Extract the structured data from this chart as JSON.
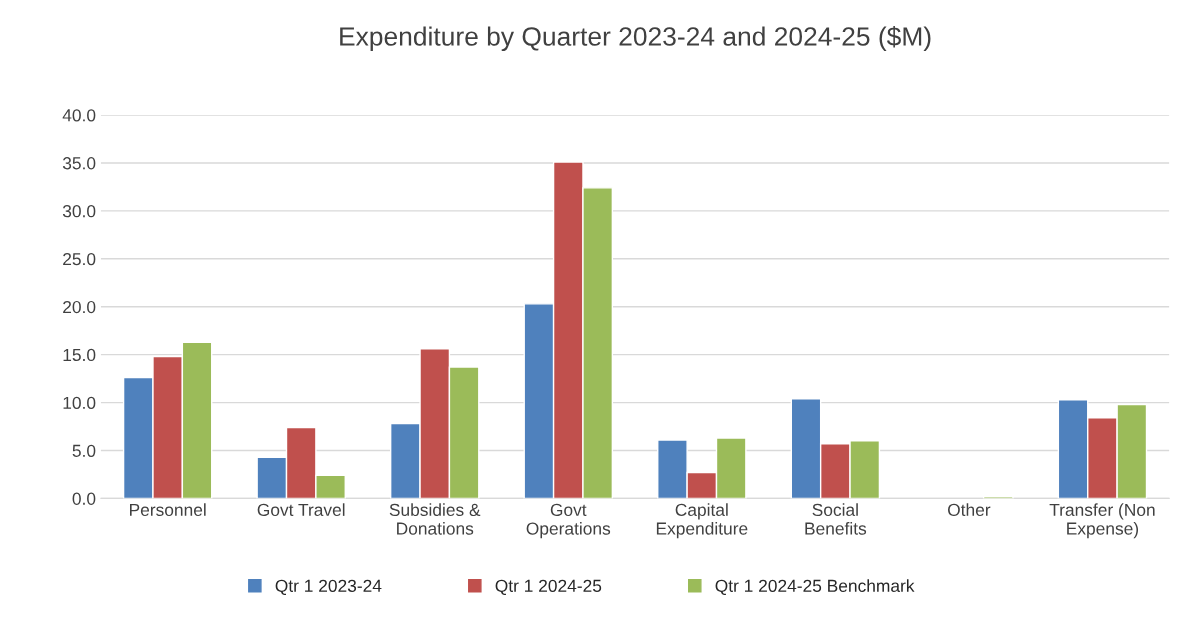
{
  "chart_data": {
    "type": "bar",
    "title": "Expenditure by Quarter 2023-24 and 2024-25 ($M)",
    "categories": [
      "Personnel",
      "Govt Travel",
      "Subsidies & Donations",
      "Govt Operations",
      "Capital Expenditure",
      "Social Benefits",
      "Other",
      "Transfer (Non Expense)"
    ],
    "series": [
      {
        "name": "Qtr 1 2023-24",
        "color": "#4f81bd",
        "values": [
          12.6,
          4.3,
          7.8,
          20.3,
          6.1,
          10.4,
          null,
          10.3
        ]
      },
      {
        "name": "Qtr 1 2024-25",
        "color": "#c0504d",
        "values": [
          14.8,
          7.4,
          15.6,
          35.1,
          2.7,
          5.7,
          null,
          8.4
        ]
      },
      {
        "name": "Qtr 1 2024-25 Benchmark",
        "color": "#9bbb59",
        "values": [
          16.3,
          2.4,
          13.7,
          32.4,
          6.3,
          6.0,
          0.2,
          9.8
        ]
      }
    ],
    "ylim": [
      0,
      40
    ],
    "yticks": [
      {
        "value": 0,
        "label": "0.0"
      },
      {
        "value": 5,
        "label": "5.0"
      },
      {
        "value": 10,
        "label": "10.0"
      },
      {
        "value": 15,
        "label": "15.0"
      },
      {
        "value": 20,
        "label": "20.0"
      },
      {
        "value": 25,
        "label": "25.0"
      },
      {
        "value": 30,
        "label": "30.0"
      },
      {
        "value": 35,
        "label": "35.0"
      },
      {
        "value": 40,
        "label": "40.0"
      }
    ],
    "grid": "y",
    "legend": "bottom"
  }
}
